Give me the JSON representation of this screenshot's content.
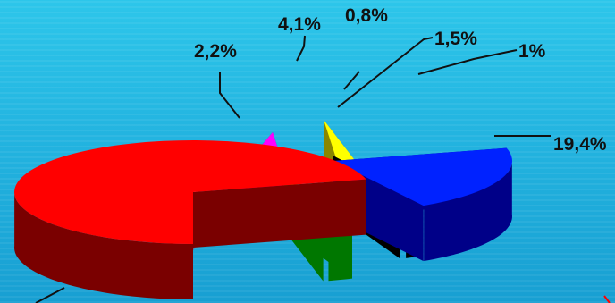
{
  "chart_data": {
    "type": "pie",
    "title": "",
    "slices": [
      {
        "label": "",
        "value": 71.0,
        "display": "",
        "top_color": "#ff0000",
        "side_color": "#7a0000"
      },
      {
        "label": "",
        "value": 19.4,
        "display": "19,4%",
        "top_color": "#0022ff",
        "side_color": "#000088"
      },
      {
        "label": "",
        "value": 1.0,
        "display": "1%",
        "top_color": "#000000",
        "side_color": "#000000"
      },
      {
        "label": "",
        "value": 1.5,
        "display": "1,5%",
        "top_color": "#22dd00",
        "side_color": "#007700"
      },
      {
        "label": "",
        "value": 0.8,
        "display": "0,8%",
        "top_color": "#ffff00",
        "side_color": "#8a8600"
      },
      {
        "label": "",
        "value": 4.1,
        "display": "4,1%",
        "top_color": "#ff00ff",
        "side_color": "#880088"
      },
      {
        "label": "",
        "value": 2.2,
        "display": "2,2%",
        "top_color": "#c9a8ff",
        "side_color": "#70608a"
      }
    ],
    "legend": "none",
    "style": "3d-exploded-pie"
  }
}
